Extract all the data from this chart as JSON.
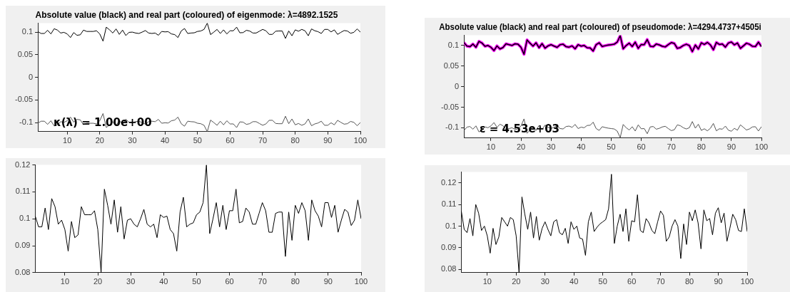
{
  "chart_data": [
    {
      "type": "line",
      "title": "Absolute value (black) and real part (coloured) of eigenmode: λ=4892.1525",
      "annotations": [
        "κ(λ) = 1.00e+00"
      ],
      "x": [
        1,
        2,
        3,
        4,
        5,
        6,
        7,
        8,
        9,
        10,
        11,
        12,
        13,
        14,
        15,
        16,
        17,
        18,
        19,
        20,
        21,
        22,
        23,
        24,
        25,
        26,
        27,
        28,
        29,
        30,
        31,
        32,
        33,
        34,
        35,
        36,
        37,
        38,
        39,
        40,
        41,
        42,
        43,
        44,
        45,
        46,
        47,
        48,
        49,
        50,
        51,
        52,
        53,
        54,
        55,
        56,
        57,
        58,
        59,
        60,
        61,
        62,
        63,
        64,
        65,
        66,
        67,
        68,
        69,
        70,
        71,
        72,
        73,
        74,
        75,
        76,
        77,
        78,
        79,
        80,
        81,
        82,
        83,
        84,
        85,
        86,
        87,
        88,
        89,
        90,
        91,
        92,
        93,
        94,
        95,
        96,
        97,
        98,
        99,
        100
      ],
      "series": [
        {
          "color": "#000000",
          "values": [
            0.101,
            0.097,
            0.097,
            0.104,
            0.096,
            0.1075,
            0.1045,
            0.098,
            0.0995,
            0.096,
            0.088,
            0.099,
            0.093,
            0.094,
            0.1045,
            0.1015,
            0.1015,
            0.1015,
            0.103,
            0.096,
            0.08,
            0.111,
            0.105,
            0.098,
            0.107,
            0.095,
            0.1045,
            0.0925,
            0.0995,
            0.1,
            0.098,
            0.097,
            0.1,
            0.1035,
            0.098,
            0.097,
            0.098,
            0.093,
            0.1015,
            0.1005,
            0.101,
            0.096,
            0.0945,
            0.088,
            0.1025,
            0.108,
            0.097,
            0.098,
            0.0985,
            0.1015,
            0.1025,
            0.106,
            0.12,
            0.0945,
            0.1,
            0.106,
            0.097,
            0.105,
            0.096,
            0.103,
            0.103,
            0.111,
            0.0985,
            0.099,
            0.104,
            0.1025,
            0.098,
            0.098,
            0.102,
            0.106,
            0.103,
            0.095,
            0.095,
            0.102,
            0.1025,
            0.1025,
            0.086,
            0.1025,
            0.092,
            0.105,
            0.102,
            0.106,
            0.103,
            0.092,
            0.107,
            0.103,
            0.101,
            0.097,
            0.106,
            0.106,
            0.1005,
            0.105,
            0.095,
            0.0995,
            0.1035,
            0.1025,
            0.0975,
            0.0995,
            0.107,
            0.1
          ]
        },
        {
          "color": "#555555",
          "values": [
            -0.101,
            -0.097,
            -0.097,
            -0.104,
            -0.096,
            -0.1075,
            -0.1045,
            -0.098,
            -0.0995,
            -0.096,
            -0.088,
            -0.099,
            -0.093,
            -0.094,
            -0.1045,
            -0.1015,
            -0.1015,
            -0.1015,
            -0.103,
            -0.096,
            -0.08,
            -0.111,
            -0.105,
            -0.098,
            -0.107,
            -0.095,
            -0.1045,
            -0.0925,
            -0.0995,
            -0.1,
            -0.098,
            -0.097,
            -0.1,
            -0.1035,
            -0.098,
            -0.097,
            -0.098,
            -0.093,
            -0.1015,
            -0.1005,
            -0.101,
            -0.096,
            -0.0945,
            -0.088,
            -0.1025,
            -0.108,
            -0.097,
            -0.098,
            -0.0985,
            -0.1015,
            -0.1025,
            -0.106,
            -0.12,
            -0.0945,
            -0.1,
            -0.106,
            -0.097,
            -0.105,
            -0.096,
            -0.103,
            -0.103,
            -0.111,
            -0.0985,
            -0.099,
            -0.104,
            -0.1025,
            -0.098,
            -0.098,
            -0.102,
            -0.106,
            -0.103,
            -0.095,
            -0.095,
            -0.102,
            -0.1025,
            -0.1025,
            -0.086,
            -0.1025,
            -0.092,
            -0.105,
            -0.102,
            -0.106,
            -0.103,
            -0.092,
            -0.107,
            -0.103,
            -0.101,
            -0.097,
            -0.106,
            -0.106,
            -0.1005,
            -0.105,
            -0.095,
            -0.0995,
            -0.1035,
            -0.1025,
            -0.0975,
            -0.0995,
            -0.107,
            -0.1
          ]
        }
      ],
      "xlim": [
        1,
        100
      ],
      "xticks": [
        10,
        20,
        30,
        40,
        50,
        60,
        70,
        80,
        90,
        100
      ],
      "ylim": [
        -0.12,
        0.12
      ],
      "yticks": [
        -0.1,
        -0.05,
        0,
        0.05,
        0.1
      ],
      "grid": false,
      "legend": false
    },
    {
      "type": "line",
      "x": [
        1,
        2,
        3,
        4,
        5,
        6,
        7,
        8,
        9,
        10,
        11,
        12,
        13,
        14,
        15,
        16,
        17,
        18,
        19,
        20,
        21,
        22,
        23,
        24,
        25,
        26,
        27,
        28,
        29,
        30,
        31,
        32,
        33,
        34,
        35,
        36,
        37,
        38,
        39,
        40,
        41,
        42,
        43,
        44,
        45,
        46,
        47,
        48,
        49,
        50,
        51,
        52,
        53,
        54,
        55,
        56,
        57,
        58,
        59,
        60,
        61,
        62,
        63,
        64,
        65,
        66,
        67,
        68,
        69,
        70,
        71,
        72,
        73,
        74,
        75,
        76,
        77,
        78,
        79,
        80,
        81,
        82,
        83,
        84,
        85,
        86,
        87,
        88,
        89,
        90,
        91,
        92,
        93,
        94,
        95,
        96,
        97,
        98,
        99,
        100
      ],
      "series": [
        {
          "color": "#000000",
          "values": [
            0.101,
            0.097,
            0.097,
            0.104,
            0.096,
            0.1075,
            0.1045,
            0.098,
            0.0995,
            0.096,
            0.088,
            0.099,
            0.093,
            0.094,
            0.1045,
            0.1015,
            0.1015,
            0.1015,
            0.103,
            0.096,
            0.08,
            0.111,
            0.105,
            0.098,
            0.107,
            0.095,
            0.1045,
            0.0925,
            0.0995,
            0.1,
            0.098,
            0.097,
            0.1,
            0.1035,
            0.098,
            0.097,
            0.098,
            0.093,
            0.1015,
            0.1005,
            0.101,
            0.096,
            0.0945,
            0.088,
            0.1025,
            0.108,
            0.097,
            0.098,
            0.0985,
            0.1015,
            0.1025,
            0.106,
            0.12,
            0.0945,
            0.1,
            0.106,
            0.097,
            0.105,
            0.096,
            0.103,
            0.103,
            0.111,
            0.0985,
            0.099,
            0.104,
            0.1025,
            0.098,
            0.098,
            0.102,
            0.106,
            0.103,
            0.095,
            0.095,
            0.102,
            0.1025,
            0.1025,
            0.086,
            0.1025,
            0.092,
            0.105,
            0.102,
            0.106,
            0.103,
            0.092,
            0.107,
            0.103,
            0.101,
            0.097,
            0.106,
            0.106,
            0.1005,
            0.105,
            0.095,
            0.0995,
            0.1035,
            0.1025,
            0.0975,
            0.0995,
            0.107,
            0.1
          ]
        }
      ],
      "xlim": [
        1,
        100
      ],
      "xticks": [
        10,
        20,
        30,
        40,
        50,
        60,
        70,
        80,
        90,
        100
      ],
      "ylim": [
        0.08,
        0.12
      ],
      "yticks": [
        0.08,
        0.09,
        0.1,
        0.11,
        0.12
      ],
      "grid": false,
      "legend": false
    },
    {
      "type": "line",
      "title": "Absolute value (black) and real part (coloured) of pseudomode: λ=4294.4737+4505i",
      "annotations": [
        "ε = 4.53e+03"
      ],
      "x": [
        1,
        2,
        3,
        4,
        5,
        6,
        7,
        8,
        9,
        10,
        11,
        12,
        13,
        14,
        15,
        16,
        17,
        18,
        19,
        20,
        21,
        22,
        23,
        24,
        25,
        26,
        27,
        28,
        29,
        30,
        31,
        32,
        33,
        34,
        35,
        36,
        37,
        38,
        39,
        40,
        41,
        42,
        43,
        44,
        45,
        46,
        47,
        48,
        49,
        50,
        51,
        52,
        53,
        54,
        55,
        56,
        57,
        58,
        59,
        60,
        61,
        62,
        63,
        64,
        65,
        66,
        67,
        68,
        69,
        70,
        71,
        72,
        73,
        74,
        75,
        76,
        77,
        78,
        79,
        80,
        81,
        82,
        83,
        84,
        85,
        86,
        87,
        88,
        89,
        90,
        91,
        92,
        93,
        94,
        95,
        96,
        97,
        98,
        99,
        100
      ],
      "series": [
        {
          "color": "#ff00ff",
          "values": [
            0.107,
            0.0985,
            0.097,
            0.1035,
            0.0955,
            0.11,
            0.106,
            0.098,
            0.1,
            0.0955,
            0.0875,
            0.099,
            0.0915,
            0.095,
            0.104,
            0.102,
            0.1,
            0.104,
            0.103,
            0.0955,
            0.0785,
            0.1135,
            0.1055,
            0.0985,
            0.1065,
            0.0945,
            0.1045,
            0.0935,
            0.099,
            0.102,
            0.0985,
            0.0955,
            0.102,
            0.103,
            0.097,
            0.096,
            0.099,
            0.092,
            0.102,
            0.0985,
            0.1,
            0.0945,
            0.094,
            0.0865,
            0.102,
            0.1065,
            0.0975,
            0.0995,
            0.101,
            0.102,
            0.103,
            0.108,
            0.124,
            0.092,
            0.1,
            0.1055,
            0.0975,
            0.108,
            0.093,
            0.1025,
            0.102,
            0.1145,
            0.098,
            0.097,
            0.1035,
            0.1015,
            0.098,
            0.0965,
            0.102,
            0.107,
            0.105,
            0.093,
            0.095,
            0.1,
            0.103,
            0.1,
            0.085,
            0.101,
            0.0915,
            0.1065,
            0.1025,
            0.1075,
            0.1015,
            0.0895,
            0.1075,
            0.1025,
            0.1035,
            0.096,
            0.106,
            0.1085,
            0.1015,
            0.106,
            0.093,
            0.099,
            0.1055,
            0.103,
            0.098,
            0.0975,
            0.108,
            0.0975
          ]
        },
        {
          "color": "#000000",
          "values": [
            0.107,
            0.0985,
            0.097,
            0.1035,
            0.0955,
            0.11,
            0.106,
            0.098,
            0.1,
            0.0955,
            0.0875,
            0.099,
            0.0915,
            0.095,
            0.104,
            0.102,
            0.1,
            0.104,
            0.103,
            0.0955,
            0.0785,
            0.1135,
            0.1055,
            0.0985,
            0.1065,
            0.0945,
            0.1045,
            0.0935,
            0.099,
            0.102,
            0.0985,
            0.0955,
            0.102,
            0.103,
            0.097,
            0.096,
            0.099,
            0.092,
            0.102,
            0.0985,
            0.1,
            0.0945,
            0.094,
            0.0865,
            0.102,
            0.1065,
            0.0975,
            0.0995,
            0.101,
            0.102,
            0.103,
            0.108,
            0.124,
            0.092,
            0.1,
            0.1055,
            0.0975,
            0.108,
            0.093,
            0.1025,
            0.102,
            0.1145,
            0.098,
            0.097,
            0.1035,
            0.1015,
            0.098,
            0.0965,
            0.102,
            0.107,
            0.105,
            0.093,
            0.095,
            0.1,
            0.103,
            0.1,
            0.085,
            0.101,
            0.0915,
            0.1065,
            0.1025,
            0.1075,
            0.1015,
            0.0895,
            0.1075,
            0.1025,
            0.1035,
            0.096,
            0.106,
            0.1085,
            0.1015,
            0.106,
            0.093,
            0.099,
            0.1055,
            0.103,
            0.098,
            0.0975,
            0.108,
            0.0975
          ]
        },
        {
          "color": "#555555",
          "values": [
            -0.107,
            -0.0985,
            -0.097,
            -0.1035,
            -0.0955,
            -0.11,
            -0.106,
            -0.098,
            -0.1,
            -0.0955,
            -0.0875,
            -0.099,
            -0.0915,
            -0.095,
            -0.104,
            -0.102,
            -0.1,
            -0.104,
            -0.103,
            -0.0955,
            -0.0785,
            -0.1135,
            -0.1055,
            -0.0985,
            -0.1065,
            -0.0945,
            -0.1045,
            -0.0935,
            -0.099,
            -0.102,
            -0.0985,
            -0.0955,
            -0.102,
            -0.103,
            -0.097,
            -0.096,
            -0.099,
            -0.092,
            -0.102,
            -0.0985,
            -0.1,
            -0.0945,
            -0.094,
            -0.0865,
            -0.102,
            -0.1065,
            -0.0975,
            -0.0995,
            -0.101,
            -0.102,
            -0.103,
            -0.108,
            -0.124,
            -0.092,
            -0.1,
            -0.1055,
            -0.0975,
            -0.108,
            -0.093,
            -0.1025,
            -0.102,
            -0.1145,
            -0.098,
            -0.097,
            -0.1035,
            -0.1015,
            -0.098,
            -0.0965,
            -0.102,
            -0.107,
            -0.105,
            -0.093,
            -0.095,
            -0.1,
            -0.103,
            -0.1,
            -0.085,
            -0.101,
            -0.0915,
            -0.1065,
            -0.1025,
            -0.1075,
            -0.1015,
            -0.0895,
            -0.1075,
            -0.1025,
            -0.1035,
            -0.096,
            -0.106,
            -0.1085,
            -0.1015,
            -0.106,
            -0.093,
            -0.099,
            -0.1055,
            -0.103,
            -0.098,
            -0.0975,
            -0.108,
            -0.0975
          ]
        }
      ],
      "xlim": [
        1,
        100
      ],
      "xticks": [
        10,
        20,
        30,
        40,
        50,
        60,
        70,
        80,
        90,
        100
      ],
      "ylim": [
        -0.125,
        0.125
      ],
      "yticks": [
        -0.1,
        -0.05,
        0,
        0.05,
        0.1
      ],
      "grid": false,
      "legend": false
    },
    {
      "type": "line",
      "x": [
        1,
        2,
        3,
        4,
        5,
        6,
        7,
        8,
        9,
        10,
        11,
        12,
        13,
        14,
        15,
        16,
        17,
        18,
        19,
        20,
        21,
        22,
        23,
        24,
        25,
        26,
        27,
        28,
        29,
        30,
        31,
        32,
        33,
        34,
        35,
        36,
        37,
        38,
        39,
        40,
        41,
        42,
        43,
        44,
        45,
        46,
        47,
        48,
        49,
        50,
        51,
        52,
        53,
        54,
        55,
        56,
        57,
        58,
        59,
        60,
        61,
        62,
        63,
        64,
        65,
        66,
        67,
        68,
        69,
        70,
        71,
        72,
        73,
        74,
        75,
        76,
        77,
        78,
        79,
        80,
        81,
        82,
        83,
        84,
        85,
        86,
        87,
        88,
        89,
        90,
        91,
        92,
        93,
        94,
        95,
        96,
        97,
        98,
        99,
        100
      ],
      "series": [
        {
          "color": "#000000",
          "values": [
            0.107,
            0.0985,
            0.097,
            0.1035,
            0.0955,
            0.11,
            0.106,
            0.098,
            0.1,
            0.0955,
            0.0875,
            0.099,
            0.0915,
            0.095,
            0.104,
            0.102,
            0.1,
            0.104,
            0.103,
            0.0955,
            0.0785,
            0.1135,
            0.1055,
            0.0985,
            0.1065,
            0.0945,
            0.1045,
            0.0935,
            0.099,
            0.102,
            0.0985,
            0.0955,
            0.102,
            0.103,
            0.097,
            0.096,
            0.099,
            0.092,
            0.102,
            0.0985,
            0.1,
            0.0945,
            0.094,
            0.0865,
            0.102,
            0.1065,
            0.0975,
            0.0995,
            0.101,
            0.102,
            0.103,
            0.108,
            0.124,
            0.092,
            0.1,
            0.1055,
            0.0975,
            0.108,
            0.093,
            0.1025,
            0.102,
            0.1145,
            0.098,
            0.097,
            0.1035,
            0.1015,
            0.098,
            0.0965,
            0.102,
            0.107,
            0.105,
            0.093,
            0.095,
            0.1,
            0.103,
            0.1,
            0.085,
            0.101,
            0.0915,
            0.1065,
            0.1025,
            0.1075,
            0.1015,
            0.0895,
            0.1075,
            0.1025,
            0.1035,
            0.096,
            0.106,
            0.1085,
            0.1015,
            0.106,
            0.093,
            0.099,
            0.1055,
            0.103,
            0.098,
            0.0975,
            0.108,
            0.0975
          ]
        }
      ],
      "xlim": [
        1,
        100
      ],
      "xticks": [
        10,
        20,
        30,
        40,
        50,
        60,
        70,
        80,
        90,
        100
      ],
      "ylim": [
        0.0785,
        0.125
      ],
      "yticks": [
        0.08,
        0.09,
        0.1,
        0.11,
        0.12
      ],
      "grid": false,
      "legend": false
    }
  ]
}
